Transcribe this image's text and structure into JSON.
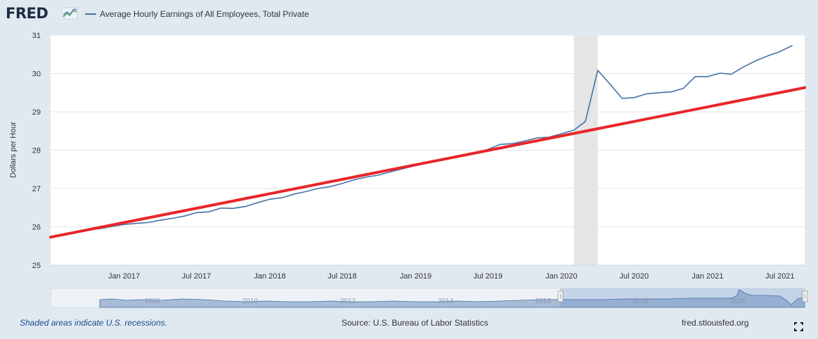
{
  "header": {
    "logo_text": "FRED",
    "logo_icon": "line-chart-icon",
    "legend_label": "Average Hourly Earnings of All Employees, Total Private",
    "series_color": "#4572a7"
  },
  "chart_data": {
    "type": "line",
    "title": "",
    "ylabel": "Dollars per Hour",
    "xlabel": "",
    "ylim": [
      25,
      31
    ],
    "xlim": [
      "2016-07-01",
      "2021-09-01"
    ],
    "y_ticks": [
      "25",
      "26",
      "27",
      "28",
      "29",
      "30",
      "31"
    ],
    "x_ticks": [
      "Jan 2017",
      "Jul 2017",
      "Jan 2018",
      "Jul 2018",
      "Jan 2019",
      "Jul 2019",
      "Jan 2020",
      "Jul 2020",
      "Jan 2021",
      "Jul 2021"
    ],
    "x_tick_dates": [
      "2017-01-01",
      "2017-07-01",
      "2018-01-01",
      "2018-07-01",
      "2019-01-01",
      "2019-07-01",
      "2020-01-01",
      "2020-07-01",
      "2021-01-01",
      "2021-07-01"
    ],
    "recession": {
      "start": "2020-02-01",
      "end": "2020-04-01",
      "color": "#e5e5e5"
    },
    "series": [
      {
        "color": "#4572a7",
        "x": [
          "2016-10-01",
          "2016-11-01",
          "2016-12-01",
          "2017-01-01",
          "2017-02-01",
          "2017-03-01",
          "2017-04-01",
          "2017-05-01",
          "2017-06-01",
          "2017-07-01",
          "2017-08-01",
          "2017-09-01",
          "2017-10-01",
          "2017-11-01",
          "2017-12-01",
          "2018-01-01",
          "2018-02-01",
          "2018-03-01",
          "2018-04-01",
          "2018-05-01",
          "2018-06-01",
          "2018-07-01",
          "2018-08-01",
          "2018-09-01",
          "2018-10-01",
          "2018-11-01",
          "2018-12-01",
          "2019-01-01",
          "2019-02-01",
          "2019-03-01",
          "2019-04-01",
          "2019-05-01",
          "2019-06-01",
          "2019-07-01",
          "2019-08-01",
          "2019-09-01",
          "2019-10-01",
          "2019-11-01",
          "2019-12-01",
          "2020-01-01",
          "2020-02-01",
          "2020-03-01",
          "2020-04-01",
          "2020-05-01",
          "2020-06-01",
          "2020-07-01",
          "2020-08-01",
          "2020-09-01",
          "2020-10-01",
          "2020-11-01",
          "2020-12-01",
          "2021-01-01",
          "2021-02-01",
          "2021-03-01",
          "2021-04-01",
          "2021-05-01",
          "2021-06-01",
          "2021-07-01",
          "2021-08-01"
        ],
        "values": [
          25.93,
          25.95,
          26.01,
          26.06,
          26.09,
          26.11,
          26.17,
          26.22,
          26.28,
          26.37,
          26.39,
          26.49,
          26.48,
          26.53,
          26.63,
          26.72,
          26.76,
          26.85,
          26.92,
          27.0,
          27.05,
          27.13,
          27.23,
          27.3,
          27.35,
          27.44,
          27.52,
          27.6,
          27.68,
          27.73,
          27.79,
          27.87,
          27.93,
          28.02,
          28.15,
          28.17,
          28.24,
          28.32,
          28.34,
          28.43,
          28.52,
          28.75,
          30.08,
          29.73,
          29.35,
          29.37,
          29.47,
          29.5,
          29.52,
          29.61,
          29.92,
          29.92,
          30.01,
          29.98,
          30.17,
          30.33,
          30.46,
          30.57,
          30.73
        ]
      }
    ],
    "annotation_line": {
      "color": "#e8262a",
      "x": [
        "2016-07-01",
        "2021-09-01"
      ],
      "values": [
        25.73,
        29.63
      ]
    }
  },
  "navigator": {
    "labels": [
      "2008",
      "2010",
      "2012",
      "2014",
      "2016",
      "2018",
      "2020"
    ]
  },
  "footer": {
    "note": "Shaded areas indicate U.S. recessions.",
    "source": "Source: U.S. Bureau of Labor Statistics",
    "url": "fred.stlouisfed.org",
    "fullscreen_icon": "fullscreen-icon"
  }
}
